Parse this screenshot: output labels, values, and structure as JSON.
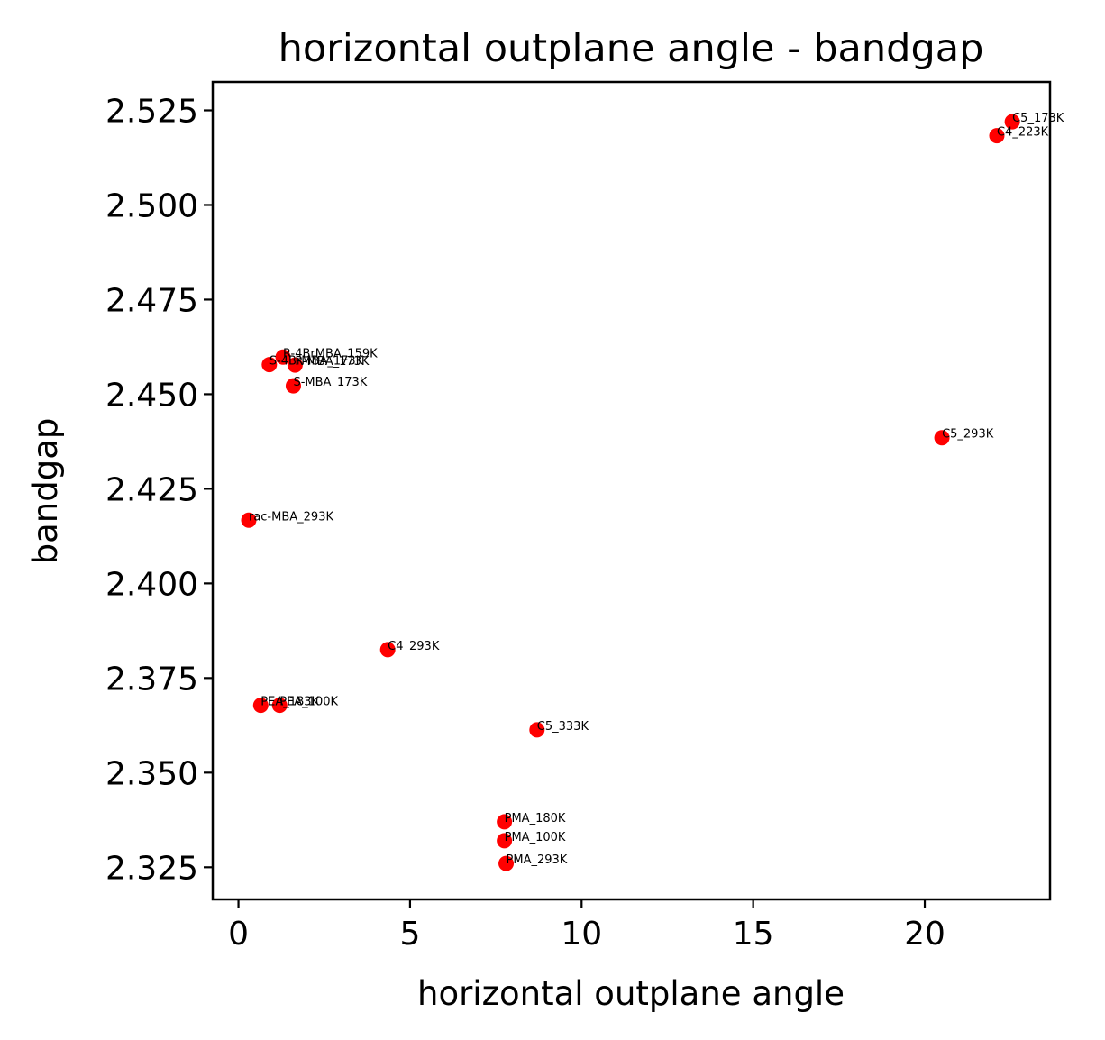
{
  "chart_data": {
    "type": "scatter",
    "title": "horizontal outplane angle - bandgap",
    "xlabel": "horizontal outplane angle",
    "ylabel": "bandgap",
    "xlim": [
      -0.75,
      23.65
    ],
    "ylim": [
      2.3165,
      2.5325
    ],
    "xticks": [
      0,
      5,
      10,
      15,
      20
    ],
    "xtick_labels": [
      "0",
      "5",
      "10",
      "15",
      "20"
    ],
    "yticks": [
      2.325,
      2.35,
      2.375,
      2.4,
      2.425,
      2.45,
      2.475,
      2.5,
      2.525
    ],
    "ytick_labels": [
      "2.325",
      "2.350",
      "2.375",
      "2.400",
      "2.425",
      "2.450",
      "2.475",
      "2.500",
      "2.525"
    ],
    "grid": false,
    "legend": "none",
    "marker_color": "#ff0000",
    "points": [
      {
        "label": "C5_173K",
        "x": 22.55,
        "y": 2.522
      },
      {
        "label": "C4_223K",
        "x": 22.1,
        "y": 2.5183
      },
      {
        "label": "R-4BrMBA_159K",
        "x": 1.3,
        "y": 2.4598
      },
      {
        "label": "S-4BrMBA_173K",
        "x": 0.9,
        "y": 2.4578
      },
      {
        "label": "R-MBA_173K",
        "x": 1.65,
        "y": 2.4577
      },
      {
        "label": "S-MBA_173K",
        "x": 1.6,
        "y": 2.4522
      },
      {
        "label": "C5_293K",
        "x": 20.5,
        "y": 2.4385
      },
      {
        "label": "rac-MBA_293K",
        "x": 0.3,
        "y": 2.4167
      },
      {
        "label": "C4_293K",
        "x": 4.35,
        "y": 2.3825
      },
      {
        "label": "PEA_100K",
        "x": 1.2,
        "y": 2.3678
      },
      {
        "label": "PEA_183K",
        "x": 0.65,
        "y": 2.3678
      },
      {
        "label": "C5_333K",
        "x": 8.7,
        "y": 2.3613
      },
      {
        "label": "PMA_180K",
        "x": 7.75,
        "y": 2.337
      },
      {
        "label": "PMA_100K",
        "x": 7.75,
        "y": 2.332
      },
      {
        "label": "PMA_293K",
        "x": 7.8,
        "y": 2.326
      }
    ]
  }
}
